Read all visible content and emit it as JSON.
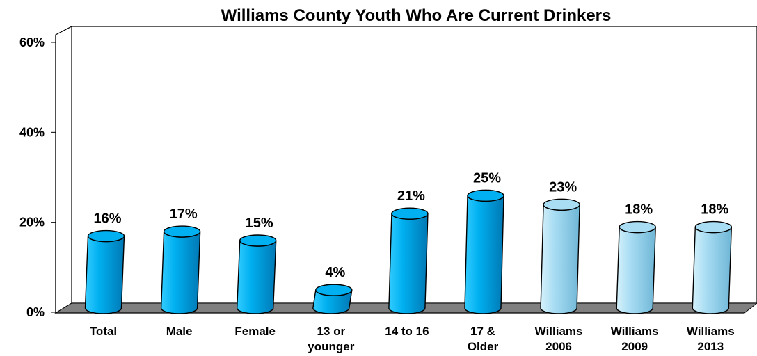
{
  "chart_data": {
    "type": "bar",
    "title": "Williams County Youth Who Are Current Drinkers",
    "xlabel": "",
    "ylabel": "",
    "ylim": [
      0,
      60
    ],
    "yticks": [
      "0%",
      "20%",
      "40%",
      "60%"
    ],
    "grid": false,
    "categories": [
      [
        "Total"
      ],
      [
        "Male"
      ],
      [
        "Female"
      ],
      [
        "13 or",
        "younger"
      ],
      [
        "14 to 16"
      ],
      [
        "17 &",
        "Older"
      ],
      [
        "Williams",
        "2006"
      ],
      [
        "Williams",
        "2009"
      ],
      [
        "Williams",
        "2013"
      ]
    ],
    "values": [
      16,
      17,
      15,
      4,
      21,
      25,
      23,
      18,
      18
    ],
    "data_labels": [
      "16%",
      "17%",
      "15%",
      "4%",
      "21%",
      "25%",
      "23%",
      "18%",
      "18%"
    ],
    "bar_groups": [
      "current",
      "current",
      "current",
      "current",
      "current",
      "current",
      "trend",
      "trend",
      "trend"
    ],
    "colors": {
      "current_light": "#33ccff",
      "current_mid": "#00b0f0",
      "current_dark": "#0078b4",
      "trend_light": "#d6f1fb",
      "trend_mid": "#a8ddf3",
      "trend_dark": "#6fb6d6",
      "floor": "#808080",
      "outline": "#000000"
    }
  }
}
